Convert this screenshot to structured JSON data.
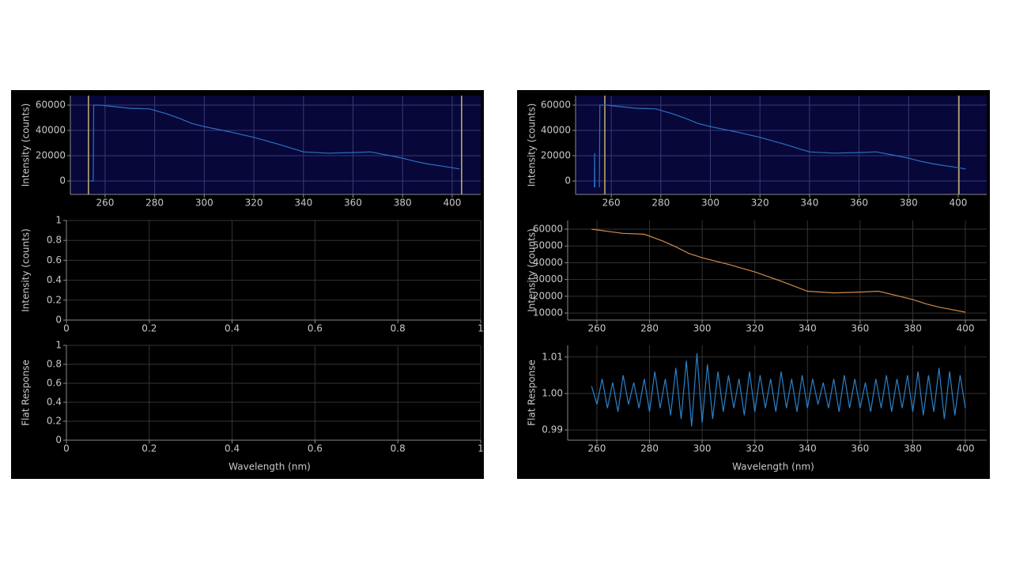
{
  "chart_data": [
    {
      "type": "line",
      "y_label": "Intensity (counts)",
      "background": "#07073a",
      "grid": true,
      "grid_color": "#3a3a78",
      "xlim": [
        246,
        411.5
      ],
      "ylim": [
        -10600,
        67500
      ],
      "xticks": [
        260,
        280,
        300,
        320,
        340,
        360,
        380,
        400
      ],
      "yticks": [
        0,
        20000,
        40000,
        60000
      ],
      "markers": [
        253.3,
        403.8
      ],
      "marker_color": "#c8b46a",
      "x": [
        254,
        255.2,
        255.4,
        258,
        265,
        270,
        278,
        285,
        290,
        295,
        300,
        310,
        320,
        330,
        340,
        350,
        360,
        367,
        375,
        380,
        385,
        390,
        395,
        400,
        403
      ],
      "series": [
        {
          "color": "#2a72c0",
          "values": [
            0,
            0,
            60000,
            60000,
            58500,
            57500,
            57000,
            53000,
            49500,
            45500,
            43000,
            39000,
            34500,
            29000,
            23000,
            22000,
            22500,
            23000,
            20000,
            18000,
            15500,
            13500,
            12000,
            10500,
            9500
          ]
        }
      ]
    },
    {
      "type": "line",
      "y_label": "Intensity (counts)",
      "background": "#000000",
      "grid": true,
      "grid_color": "#333333",
      "xlim": [
        0,
        1
      ],
      "ylim": [
        0,
        1
      ],
      "xticks": [
        0,
        0.2,
        0.4,
        0.6,
        0.8,
        1
      ],
      "yticks": [
        0,
        0.2,
        0.4,
        0.6,
        0.8,
        1
      ],
      "series": []
    },
    {
      "type": "line",
      "y_label": "Flat Response",
      "x_label": "Wavelength (nm)",
      "background": "#000000",
      "grid": true,
      "grid_color": "#333333",
      "xlim": [
        0,
        1
      ],
      "ylim": [
        0,
        1
      ],
      "xticks": [
        0,
        0.2,
        0.4,
        0.6,
        0.8,
        1
      ],
      "yticks": [
        0,
        0.2,
        0.4,
        0.6,
        0.8,
        1
      ],
      "series": []
    },
    {
      "type": "line",
      "y_label": "Intensity (counts)",
      "background": "#07073a",
      "grid": true,
      "grid_color": "#3a3a78",
      "xlim": [
        245.6,
        411.5
      ],
      "ylim": [
        -10600,
        67500
      ],
      "xticks": [
        260,
        280,
        300,
        320,
        340,
        360,
        380,
        400
      ],
      "yticks": [
        0,
        20000,
        40000,
        60000
      ],
      "markers": [
        257.4,
        400.3
      ],
      "marker_color": "#c8b46a",
      "x": [
        253.2,
        253.3,
        253.4,
        255,
        255.2,
        255.4,
        258,
        265,
        270,
        278,
        285,
        290,
        295,
        300,
        310,
        320,
        330,
        340,
        350,
        360,
        367,
        375,
        380,
        385,
        390,
        395,
        400,
        403
      ],
      "series": [
        {
          "color": "#2a72c0",
          "values": [
            -5000,
            22000,
            -5000,
            null,
            -5000,
            60000,
            60000,
            58500,
            57500,
            57000,
            53000,
            49500,
            45500,
            43000,
            39000,
            34500,
            29000,
            23000,
            22000,
            22500,
            23000,
            20000,
            18000,
            15500,
            13500,
            12000,
            10500,
            9500
          ]
        }
      ]
    },
    {
      "type": "line",
      "y_label": "Intensity (counts)",
      "background": "#000000",
      "grid": true,
      "grid_color": "#333333",
      "xlim": [
        248.9,
        408.1
      ],
      "ylim": [
        5800,
        65200
      ],
      "xticks": [
        260,
        280,
        300,
        320,
        340,
        360,
        380,
        400
      ],
      "yticks": [
        10000,
        20000,
        30000,
        40000,
        50000,
        60000
      ],
      "x": [
        258,
        265,
        270,
        278,
        285,
        290,
        295,
        300,
        310,
        320,
        330,
        340,
        350,
        360,
        367,
        375,
        380,
        385,
        390,
        395,
        400
      ],
      "series": [
        {
          "color": "#d08a4a",
          "values": [
            60000,
            58500,
            57500,
            57000,
            53000,
            49500,
            45500,
            43000,
            39000,
            34500,
            29000,
            23000,
            22000,
            22500,
            23000,
            20000,
            18000,
            15500,
            13500,
            12000,
            10500
          ]
        }
      ]
    },
    {
      "type": "line",
      "y_label": "Flat Response",
      "x_label": "Wavelength (nm)",
      "background": "#000000",
      "grid": true,
      "grid_color": "#333333",
      "xlim": [
        248.9,
        408.1
      ],
      "ylim": [
        0.9872,
        1.0132
      ],
      "xticks": [
        260,
        280,
        300,
        320,
        340,
        360,
        380,
        400
      ],
      "yticks": [
        1.01,
        {
          "value": 1,
          "label": "1.00"
        },
        0.99
      ],
      "x": [
        258,
        260,
        262,
        264,
        266,
        268,
        270,
        272,
        274,
        276,
        278,
        280,
        282,
        284,
        286,
        288,
        290,
        292,
        294,
        296,
        298,
        300,
        302,
        304,
        306,
        308,
        310,
        312,
        314,
        316,
        318,
        320,
        322,
        324,
        326,
        328,
        330,
        332,
        334,
        336,
        338,
        340,
        342,
        344,
        346,
        348,
        350,
        352,
        354,
        356,
        358,
        360,
        362,
        364,
        366,
        368,
        370,
        372,
        374,
        376,
        378,
        380,
        382,
        384,
        386,
        388,
        390,
        392,
        394,
        396,
        398,
        400
      ],
      "series": [
        {
          "color": "#2a80c8",
          "values": [
            1.002,
            0.997,
            1.004,
            0.996,
            1.003,
            0.995,
            1.005,
            0.997,
            1.003,
            0.996,
            1.004,
            0.995,
            1.006,
            0.996,
            1.004,
            0.994,
            1.007,
            0.993,
            1.009,
            0.991,
            1.011,
            0.992,
            1.008,
            0.993,
            1.006,
            0.995,
            1.005,
            0.996,
            1.004,
            0.994,
            1.006,
            0.995,
            1.005,
            0.996,
            1.004,
            0.995,
            1.006,
            0.996,
            1.004,
            0.995,
            1.005,
            0.996,
            1.004,
            0.997,
            1.003,
            0.996,
            1.004,
            0.995,
            1.005,
            0.996,
            1.004,
            0.996,
            1.003,
            0.995,
            1.004,
            0.996,
            1.005,
            0.995,
            1.004,
            0.996,
            1.005,
            0.995,
            1.006,
            0.994,
            1.005,
            0.995,
            1.007,
            0.993,
            1.006,
            0.994,
            1.005,
            0.996
          ]
        }
      ]
    }
  ]
}
